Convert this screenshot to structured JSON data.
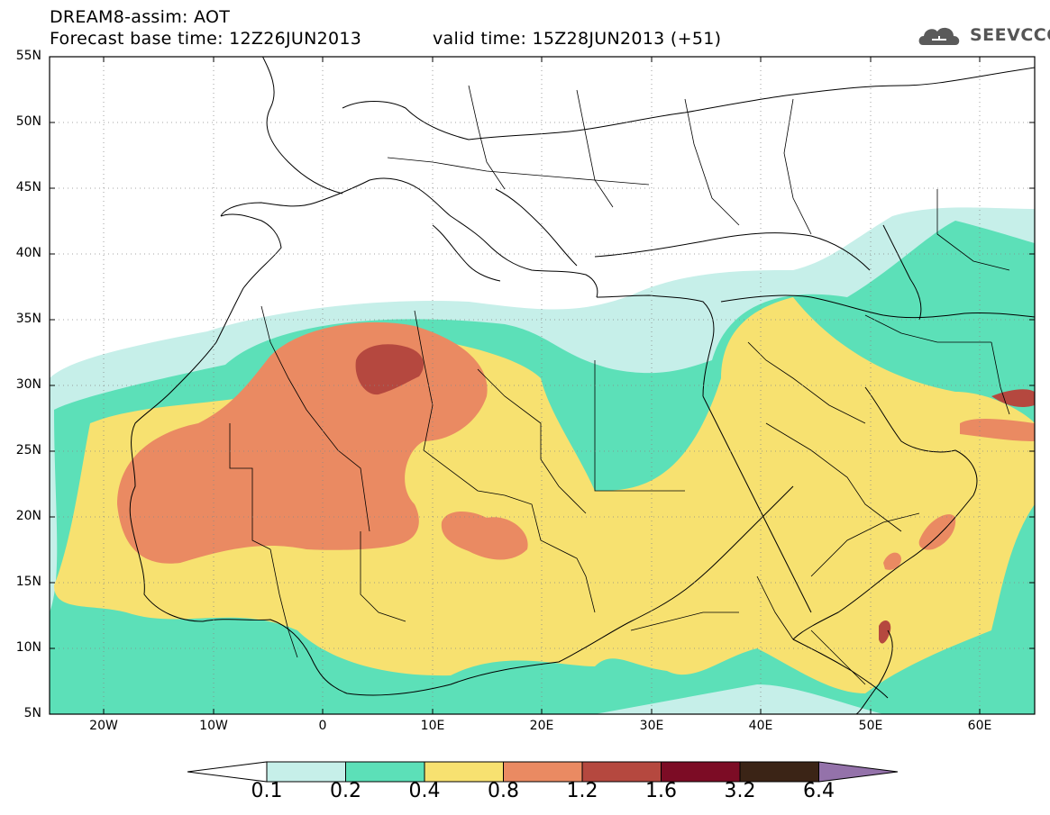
{
  "header": {
    "line1": "DREAM8-assim: AOT",
    "line2": "Forecast base time: 12Z26JUN2013",
    "valid": "valid time: 15Z28JUN2013 (+51)",
    "logo_text": "SEEVCCC"
  },
  "axes": {
    "lat_labels": [
      "55N",
      "50N",
      "45N",
      "40N",
      "35N",
      "30N",
      "25N",
      "20N",
      "15N",
      "10N",
      "5N"
    ],
    "lon_labels": [
      "20W",
      "10W",
      "0",
      "10E",
      "20E",
      "30E",
      "40E",
      "50E",
      "60E"
    ]
  },
  "legend": {
    "levels": [
      "0.1",
      "0.2",
      "0.4",
      "0.8",
      "1.2",
      "1.6",
      "3.2",
      "6.4"
    ],
    "colors": {
      "c01": "#c6efe9",
      "c02": "#5ce0b8",
      "c04": "#f7e170",
      "c08": "#ea8a62",
      "c12": "#b5483f",
      "c16": "#7c0c25",
      "c32": "#3b2416",
      "c64": "#9472aa"
    }
  }
}
